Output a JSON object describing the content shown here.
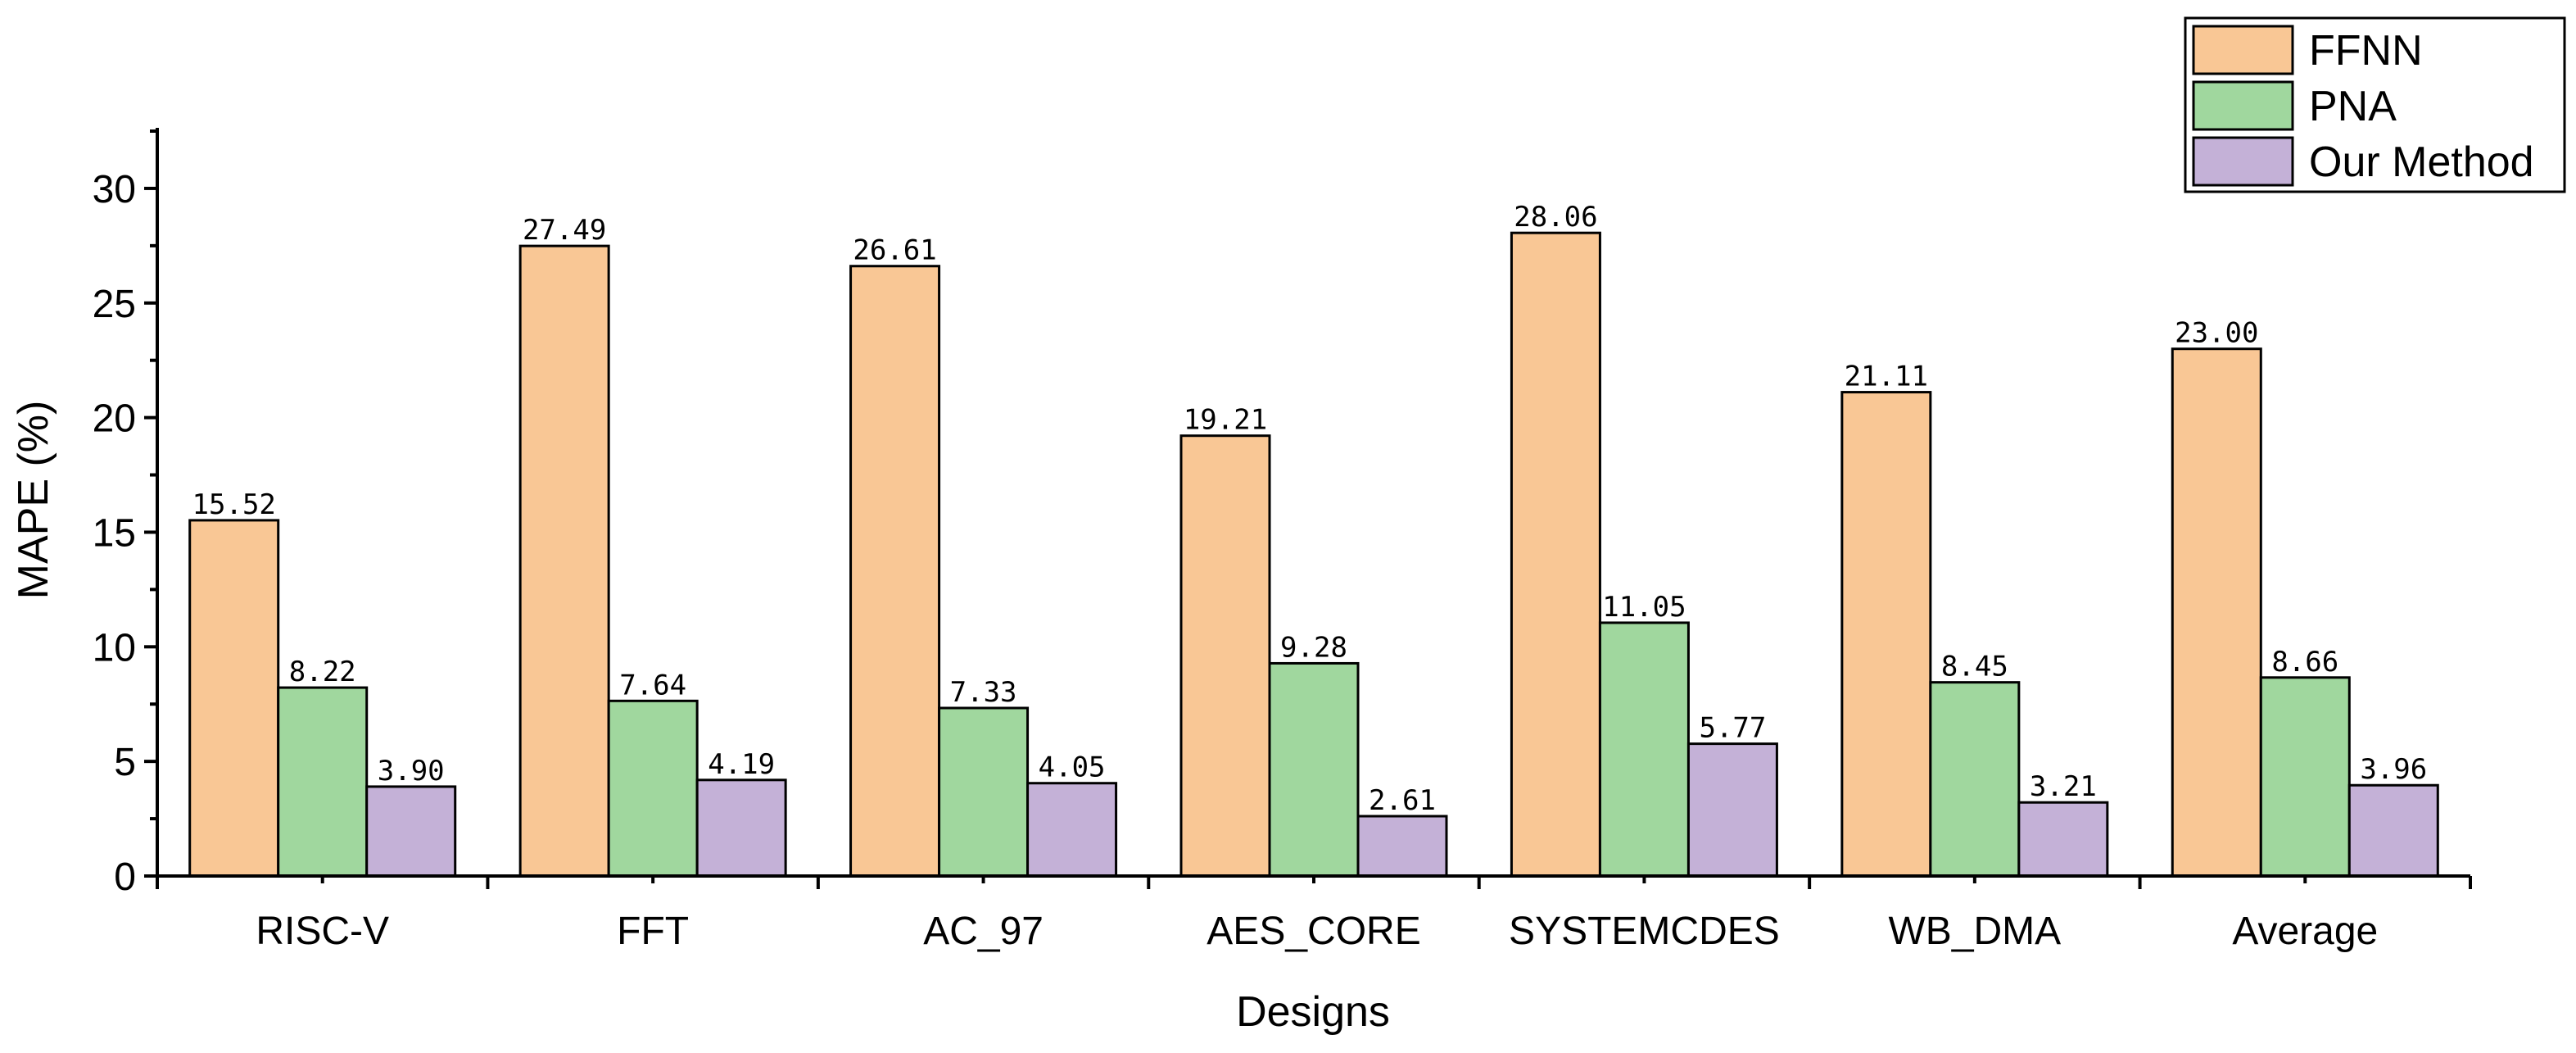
{
  "chart_data": {
    "type": "bar",
    "title": "",
    "xlabel": "Designs",
    "ylabel": "MAPE (%)",
    "ylim": [
      0,
      32.5
    ],
    "yticks": [
      0,
      5,
      10,
      15,
      20,
      25,
      30
    ],
    "categories": [
      "RISC-V",
      "FFT",
      "AC_97",
      "AES_CORE",
      "SYSTEMCDES",
      "WB_DMA",
      "Average"
    ],
    "series": [
      {
        "name": "FFNN",
        "color": "#f9c795",
        "values": [
          15.52,
          27.49,
          26.61,
          19.21,
          28.06,
          21.11,
          23.0
        ],
        "labels": [
          "15.52",
          "27.49",
          "26.61",
          "19.21",
          "28.06",
          "21.11",
          "23.00"
        ]
      },
      {
        "name": "PNA",
        "color": "#a0d79e",
        "values": [
          8.22,
          7.64,
          7.33,
          9.28,
          11.05,
          8.45,
          8.66
        ],
        "labels": [
          "8.22",
          "7.64",
          "7.33",
          "9.28",
          "11.05",
          "8.45",
          "8.66"
        ]
      },
      {
        "name": "Our Method",
        "color": "#c4b1d7",
        "values": [
          3.9,
          4.19,
          4.05,
          2.61,
          5.77,
          3.21,
          3.96
        ],
        "labels": [
          "3.90",
          "4.19",
          "4.05",
          "2.61",
          "5.77",
          "3.21",
          "3.96"
        ]
      }
    ],
    "legend_position": "top-right",
    "grid": false
  }
}
